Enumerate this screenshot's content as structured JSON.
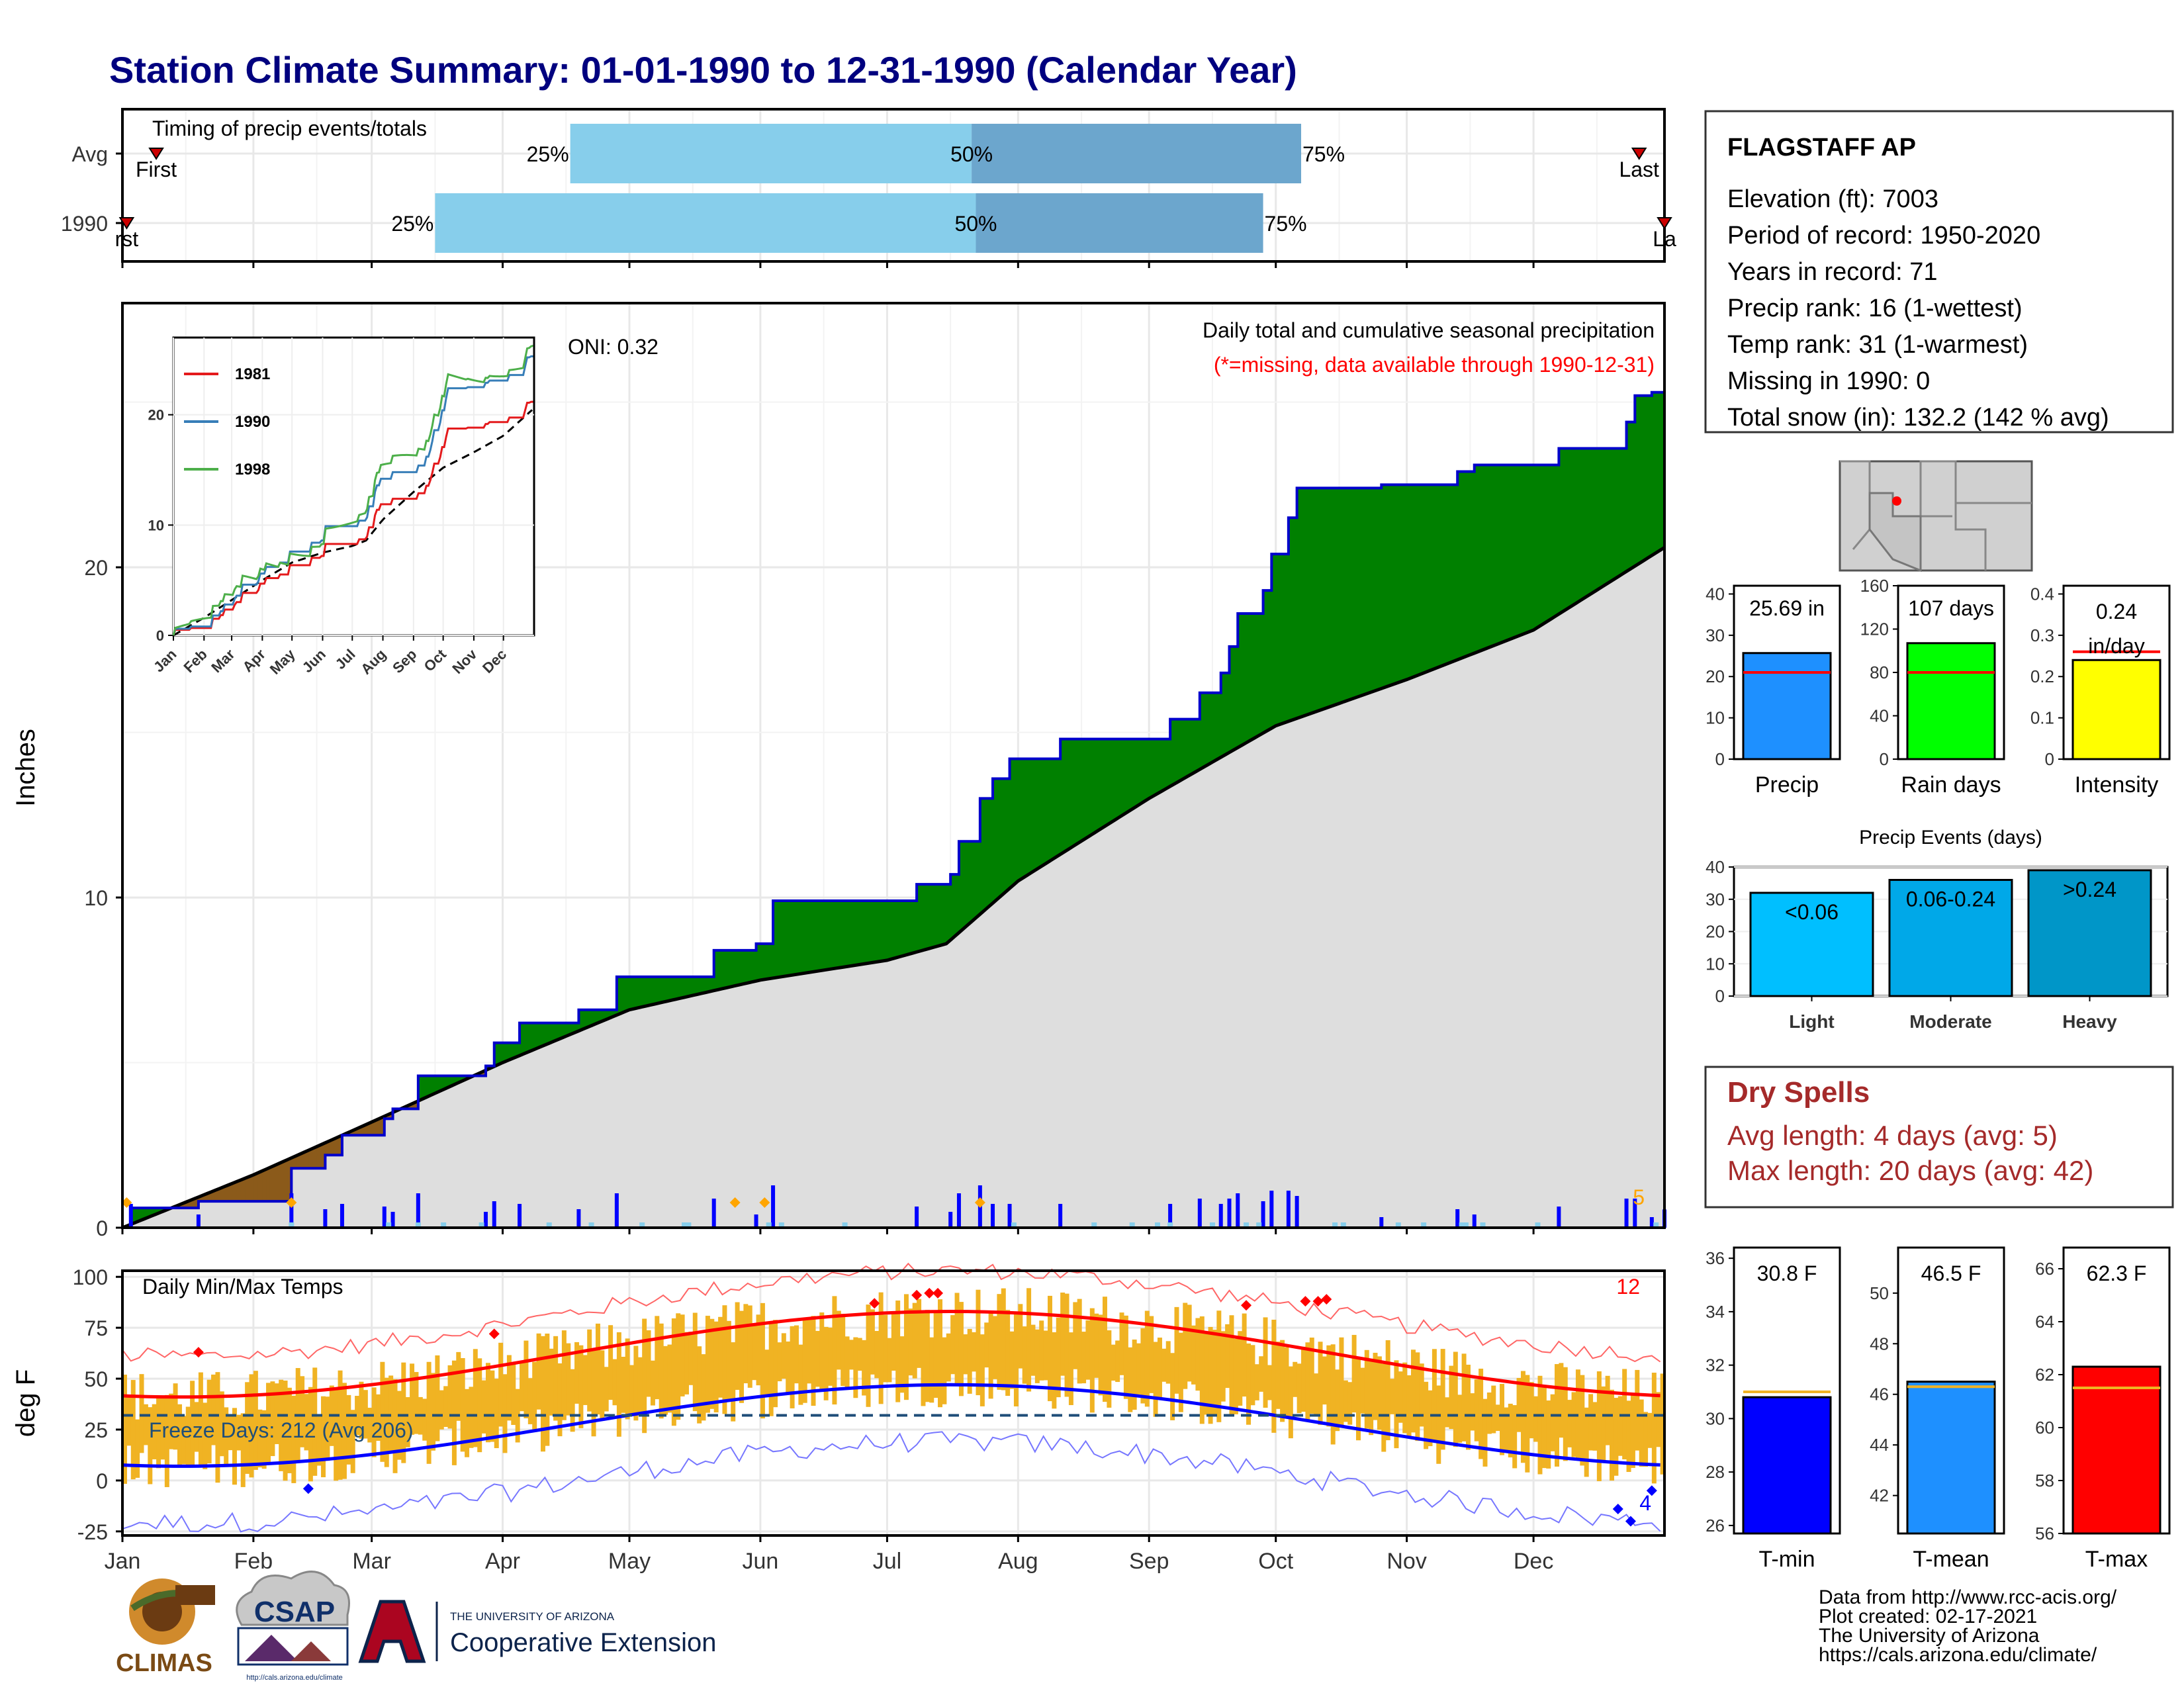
{
  "title": "Station Climate Summary: 01-01-1990 to 12-31-1990 (Calendar Year)",
  "months": [
    "Jan",
    "Feb",
    "Mar",
    "Apr",
    "May",
    "Jun",
    "Jul",
    "Aug",
    "Sep",
    "Oct",
    "Nov",
    "Dec"
  ],
  "timing": {
    "title": "Timing of precip events/totals",
    "rows": [
      {
        "label": "Avg",
        "first_label": "First",
        "last_label": "Last",
        "first_day": 8,
        "last_day": 359,
        "p25_day": 106,
        "p50_day": 201,
        "p75_day": 279,
        "p25_label": "25%",
        "p50_label": "50%",
        "p75_label": "75%"
      },
      {
        "label": "1990",
        "first_label": "rst",
        "last_label": "La",
        "first_day": 1,
        "last_day": 365,
        "p25_day": 74,
        "p50_day": 202,
        "p75_day": 270,
        "p25_label": "25%",
        "p50_label": "50%",
        "p75_label": "75%"
      }
    ]
  },
  "precip_panel": {
    "ylabel": "Inches",
    "yticks": [
      0,
      10,
      20
    ],
    "ylim": [
      0,
      28
    ],
    "title": "Daily total and cumulative seasonal precipitation",
    "subtitle": "(*=missing, data available through 1990-12-31)",
    "oni_label": "ONI: 0.32",
    "count_label": "5",
    "colors": {
      "above": "#008000",
      "below": "#8B5A1A",
      "normal_fill": "#dedede",
      "cum_line": "#0000cc",
      "daily_bar": "#0000ff",
      "snow_marker": "#FFA500"
    }
  },
  "inset": {
    "yticks": [
      0,
      10,
      20
    ],
    "ylim": [
      0,
      27
    ],
    "months": [
      "Jan",
      "Feb",
      "Mar",
      "Apr",
      "May",
      "Jun",
      "Jul",
      "Aug",
      "Sep",
      "Oct",
      "Nov",
      "Dec"
    ],
    "series": [
      {
        "name": "1981",
        "color": "#e41a1c",
        "total": 21.5
      },
      {
        "name": "1990",
        "color": "#377eb8",
        "total": 25.69
      },
      {
        "name": "1998",
        "color": "#4daf4a",
        "total": 27.0
      }
    ]
  },
  "temp_panel": {
    "ylabel": "deg F",
    "yticks": [
      100,
      75,
      50,
      25,
      0,
      -25
    ],
    "ylim": [
      -27,
      103
    ],
    "title": "Daily Min/Max Temps",
    "freeze_label": "Freeze Days: 212 (Avg 206)",
    "count_high": "12",
    "count_low": "4",
    "colors": {
      "bar": "#F0B323",
      "avg_max": "#FF0000",
      "avg_min": "#0000FF",
      "rec_max": "#FF6666",
      "rec_min": "#7777FF",
      "freeze": "#1f4e79"
    }
  },
  "station": {
    "name": "FLAGSTAFF AP",
    "lines": [
      "Elevation (ft): 7003",
      "Period of record: 1950-2020",
      "Years in record: 71",
      "Precip rank: 16 (1-wettest)",
      "Temp rank: 31 (1-warmest)",
      "Missing in 1990: 0",
      "Total snow (in): 132.2 (142 % avg)"
    ]
  },
  "summary_bars": [
    {
      "name": "Precip",
      "value": 25.69,
      "label": "25.69 in",
      "avg": 21,
      "ymax": 42,
      "yticks": [
        0,
        10,
        20,
        30,
        40
      ],
      "color": "#1E90FF"
    },
    {
      "name": "Rain days",
      "value": 107,
      "label": "107 days",
      "avg": 80,
      "ymax": 160,
      "yticks": [
        0,
        40,
        80,
        120,
        160
      ],
      "color": "#00FF00"
    },
    {
      "name": "Intensity",
      "value": 0.24,
      "label": "0.24 in/day",
      "avg": 0.26,
      "ymax": 0.42,
      "yticks": [
        0.0,
        0.1,
        0.2,
        0.3,
        0.4
      ],
      "color": "#FFFF00"
    }
  ],
  "events_chart": {
    "title": "Precip Events (days)",
    "yticks": [
      0,
      10,
      20,
      30,
      40
    ],
    "ymax": 40,
    "categories": [
      "Light",
      "Moderate",
      "Heavy"
    ],
    "bar_labels": [
      "<0.06",
      "0.06-0.24",
      ">0.24"
    ],
    "values": [
      32,
      36,
      39
    ],
    "colors": [
      "#00BFFF",
      "#00A8E8",
      "#0096C8"
    ]
  },
  "dry_spells": {
    "title": "Dry Spells",
    "lines": [
      "Avg length: 4 days (avg: 5)",
      "Max length: 20 days (avg: 42)"
    ],
    "color": "#A52A2A"
  },
  "temp_bars": [
    {
      "name": "T-min",
      "value": 30.8,
      "label": "30.8 F",
      "avg": 31.0,
      "ymin": 25.7,
      "ymax": 36.4,
      "yticks": [
        26,
        28,
        30,
        32,
        34,
        36
      ],
      "color": "#0000FF"
    },
    {
      "name": "T-mean",
      "value": 46.5,
      "label": "46.5 F",
      "avg": 46.3,
      "ymin": 40.5,
      "ymax": 51.8,
      "yticks": [
        42,
        44,
        46,
        48,
        50
      ],
      "color": "#1E90FF"
    },
    {
      "name": "T-max",
      "value": 62.3,
      "label": "62.3 F",
      "avg": 61.5,
      "ymin": 56,
      "ymax": 66.8,
      "yticks": [
        56,
        58,
        60,
        62,
        64,
        66
      ],
      "color": "#FF0000"
    }
  ],
  "footer": {
    "credits": [
      "Data from http://www.rcc-acis.org/",
      "Plot created: 02-17-2021",
      "The University of Arizona",
      "https://cals.arizona.edu/climate/"
    ],
    "logo_climas": "CLIMAS",
    "logo_csap": "CSAP",
    "logo_csap_url": "http://cals.arizona.edu/climate",
    "ua_small": "THE UNIVERSITY OF ARIZONA",
    "ua_large": "Cooperative Extension"
  }
}
